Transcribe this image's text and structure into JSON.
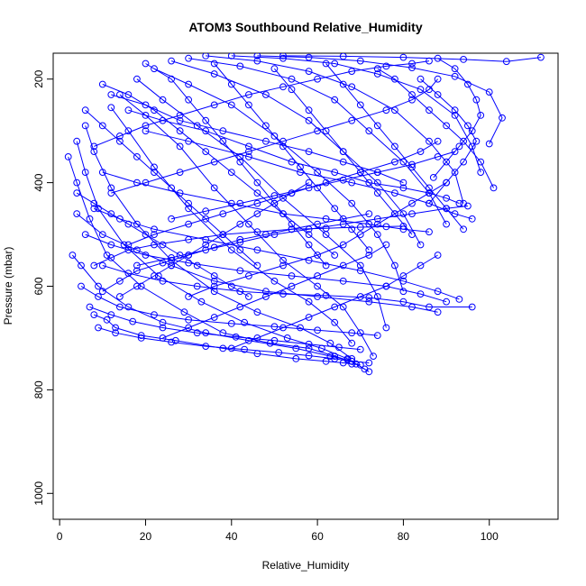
{
  "chart_data": {
    "type": "scatter",
    "title": "ATOM3 Southbound Relative_Humidity",
    "xlabel": "Relative_Humidity",
    "ylabel": "Pressure (mbar)",
    "xlim": [
      -1.5,
      116
    ],
    "ylim": [
      1050,
      150
    ],
    "y_reversed": true,
    "xticks": [
      0,
      20,
      40,
      60,
      80,
      100
    ],
    "yticks": [
      200,
      400,
      600,
      800,
      1000
    ],
    "grid": false,
    "legend": "none",
    "color": "#0000ff",
    "point_marker": "open-circle",
    "connected": true,
    "series": [
      {
        "x": [
          8,
          11,
          13,
          19,
          27,
          38,
          46,
          55,
          62,
          66,
          68,
          70
        ],
        "y": [
          655,
          665,
          680,
          695,
          705,
          720,
          730,
          740,
          745,
          748,
          750,
          752
        ]
      },
      {
        "x": [
          3,
          5,
          9,
          16,
          24,
          34,
          44,
          55,
          63,
          67,
          69
        ],
        "y": [
          540,
          560,
          600,
          640,
          670,
          690,
          705,
          720,
          735,
          742,
          750
        ]
      },
      {
        "x": [
          2,
          4,
          7,
          11,
          19,
          29,
          38,
          49,
          58,
          64,
          68,
          72
        ],
        "y": [
          350,
          400,
          470,
          540,
          600,
          650,
          690,
          710,
          720,
          735,
          745,
          765
        ]
      },
      {
        "x": [
          4,
          6,
          9,
          15,
          23,
          33,
          43,
          53,
          61,
          67,
          71
        ],
        "y": [
          320,
          380,
          450,
          520,
          580,
          630,
          670,
          700,
          720,
          740,
          760
        ]
      },
      {
        "x": [
          6,
          8,
          12,
          18,
          26,
          36,
          46,
          56,
          63,
          68
        ],
        "y": [
          290,
          340,
          410,
          480,
          550,
          610,
          650,
          680,
          710,
          740
        ]
      },
      {
        "x": [
          12,
          16,
          22,
          30,
          40,
          50,
          58,
          64,
          68
        ],
        "y": [
          255,
          300,
          370,
          450,
          530,
          590,
          630,
          670,
          710
        ]
      },
      {
        "x": [
          14,
          20,
          28,
          36,
          44,
          52,
          60,
          66,
          70,
          73
        ],
        "y": [
          230,
          270,
          330,
          410,
          480,
          550,
          600,
          640,
          690,
          735
        ]
      },
      {
        "x": [
          18,
          24,
          32,
          42,
          52,
          62,
          70,
          74,
          76
        ],
        "y": [
          200,
          240,
          290,
          350,
          430,
          500,
          560,
          620,
          680
        ]
      },
      {
        "x": [
          22,
          30,
          40,
          50,
          60,
          68,
          74,
          78,
          80
        ],
        "y": [
          180,
          210,
          250,
          310,
          380,
          440,
          500,
          560,
          610
        ]
      },
      {
        "x": [
          26,
          36,
          48,
          58,
          66,
          74,
          80,
          84
        ],
        "y": [
          165,
          190,
          230,
          280,
          340,
          400,
          460,
          520
        ]
      },
      {
        "x": [
          30,
          42,
          54,
          64,
          72,
          80,
          86,
          90
        ],
        "y": [
          160,
          175,
          200,
          240,
          300,
          360,
          420,
          480
        ]
      },
      {
        "x": [
          34,
          46,
          58,
          68,
          78,
          86,
          92,
          94
        ],
        "y": [
          155,
          165,
          185,
          215,
          260,
          320,
          380,
          440
        ]
      },
      {
        "x": [
          40,
          52,
          64,
          74,
          84,
          92,
          96,
          98
        ],
        "y": [
          155,
          160,
          170,
          190,
          220,
          270,
          330,
          380
        ]
      },
      {
        "x": [
          46,
          58,
          70,
          82,
          92,
          100,
          103,
          100
        ],
        "y": [
          155,
          158,
          165,
          178,
          195,
          225,
          275,
          325
        ]
      },
      {
        "x": [
          52,
          66,
          80,
          94,
          104,
          112
        ],
        "y": [
          155,
          156,
          158,
          162,
          166,
          158
        ]
      },
      {
        "x": [
          20,
          30,
          44,
          56,
          68,
          78,
          86,
          92,
          96
        ],
        "y": [
          300,
          320,
          350,
          380,
          400,
          420,
          440,
          460,
          470
        ]
      },
      {
        "x": [
          10,
          18,
          28,
          40,
          52,
          62,
          72,
          80,
          86
        ],
        "y": [
          380,
          400,
          420,
          440,
          460,
          470,
          480,
          490,
          495
        ]
      },
      {
        "x": [
          8,
          14,
          22,
          34,
          46,
          58,
          70,
          80,
          88,
          93
        ],
        "y": [
          450,
          470,
          490,
          510,
          530,
          550,
          570,
          590,
          610,
          625
        ]
      },
      {
        "x": [
          6,
          12,
          20,
          30,
          42,
          54,
          66,
          76,
          84,
          90
        ],
        "y": [
          500,
          520,
          540,
          555,
          570,
          580,
          590,
          600,
          615,
          630
        ]
      },
      {
        "x": [
          4,
          10,
          18,
          26,
          36,
          48,
          60,
          72,
          82,
          88
        ],
        "y": [
          460,
          500,
          530,
          560,
          590,
          610,
          620,
          630,
          640,
          650
        ]
      },
      {
        "x": [
          10,
          16,
          24,
          32,
          42,
          52,
          62,
          72,
          80,
          86,
          96
        ],
        "y": [
          560,
          575,
          590,
          600,
          610,
          615,
          618,
          622,
          630,
          640,
          640
        ]
      },
      {
        "x": [
          5,
          9,
          14,
          22,
          30,
          40,
          50,
          60,
          68,
          74
        ],
        "y": [
          600,
          620,
          640,
          655,
          665,
          672,
          678,
          685,
          690,
          695
        ]
      },
      {
        "x": [
          7,
          12,
          17,
          24,
          32,
          41,
          50,
          58,
          65,
          70
        ],
        "y": [
          640,
          655,
          668,
          680,
          690,
          698,
          705,
          712,
          718,
          722
        ]
      },
      {
        "x": [
          9,
          13,
          19,
          26,
          34,
          43,
          51,
          58,
          64,
          68,
          72
        ],
        "y": [
          680,
          690,
          700,
          708,
          716,
          722,
          728,
          734,
          740,
          745,
          748
        ]
      },
      {
        "x": [
          30,
          36,
          44,
          52,
          60,
          66,
          70,
          74,
          78,
          82,
          86,
          90
        ],
        "y": [
          620,
          600,
          580,
          560,
          540,
          520,
          500,
          480,
          460,
          440,
          420,
          400
        ]
      },
      {
        "x": [
          16,
          22,
          30,
          38,
          46,
          54,
          62,
          70,
          78,
          84,
          88
        ],
        "y": [
          520,
          500,
          480,
          460,
          440,
          420,
          400,
          380,
          360,
          340,
          320
        ]
      },
      {
        "x": [
          12,
          20,
          28,
          36,
          44,
          52,
          60,
          68,
          76,
          82,
          86,
          88
        ],
        "y": [
          420,
          400,
          380,
          360,
          340,
          320,
          300,
          280,
          260,
          240,
          220,
          200
        ]
      },
      {
        "x": [
          8,
          14,
          20,
          28,
          36,
          44,
          52,
          60,
          68,
          76,
          82,
          86
        ],
        "y": [
          330,
          310,
          290,
          270,
          250,
          230,
          215,
          200,
          185,
          175,
          170,
          165
        ]
      },
      {
        "x": [
          10,
          16,
          22,
          28,
          34,
          40,
          46,
          52,
          58,
          64
        ],
        "y": [
          210,
          230,
          260,
          300,
          340,
          380,
          420,
          460,
          500,
          540
        ]
      },
      {
        "x": [
          20,
          26,
          30,
          34,
          38,
          42,
          46,
          50,
          54,
          58,
          62
        ],
        "y": [
          170,
          200,
          240,
          280,
          320,
          360,
          400,
          440,
          480,
          520,
          560
        ]
      },
      {
        "x": [
          36,
          40,
          44,
          48,
          52,
          56,
          60,
          64,
          68,
          72
        ],
        "y": [
          170,
          210,
          250,
          290,
          330,
          370,
          410,
          450,
          490,
          530
        ]
      },
      {
        "x": [
          50,
          54,
          58,
          62,
          66,
          70,
          74,
          78,
          82
        ],
        "y": [
          180,
          220,
          260,
          300,
          340,
          380,
          420,
          460,
          500
        ]
      },
      {
        "x": [
          62,
          66,
          70,
          74,
          78,
          82,
          86,
          90,
          94
        ],
        "y": [
          170,
          210,
          250,
          290,
          330,
          370,
          410,
          450,
          490
        ]
      },
      {
        "x": [
          74,
          78,
          82,
          86,
          90,
          94,
          98,
          101
        ],
        "y": [
          180,
          200,
          230,
          260,
          290,
          320,
          360,
          410
        ]
      },
      {
        "x": [
          84,
          88,
          92,
          95,
          97,
          94,
          90,
          86
        ],
        "y": [
          200,
          230,
          260,
          290,
          320,
          360,
          400,
          440
        ]
      },
      {
        "x": [
          88,
          92,
          95,
          97,
          98,
          96,
          93,
          90,
          87
        ],
        "y": [
          160,
          180,
          210,
          240,
          270,
          300,
          330,
          360,
          390
        ]
      },
      {
        "x": [
          4,
          8,
          12,
          16,
          20,
          24,
          28,
          32,
          36,
          40,
          44
        ],
        "y": [
          420,
          440,
          460,
          480,
          500,
          520,
          540,
          560,
          580,
          600,
          620
        ]
      },
      {
        "x": [
          6,
          10,
          14,
          18,
          22,
          26,
          30,
          34,
          38,
          42,
          46
        ],
        "y": [
          260,
          290,
          320,
          350,
          380,
          410,
          440,
          470,
          500,
          530,
          560
        ]
      },
      {
        "x": [
          14,
          18,
          22,
          26,
          30,
          34,
          38,
          42,
          46,
          50,
          54,
          58
        ],
        "y": [
          620,
          600,
          580,
          560,
          540,
          520,
          500,
          480,
          460,
          440,
          420,
          400
        ]
      },
      {
        "x": [
          24,
          30,
          36,
          42,
          48,
          54,
          60,
          66,
          72,
          76
        ],
        "y": [
          700,
          680,
          660,
          640,
          620,
          600,
          580,
          560,
          540,
          520
        ]
      },
      {
        "x": [
          40,
          46,
          52,
          58,
          64,
          70,
          76,
          80,
          84,
          88
        ],
        "y": [
          720,
          700,
          680,
          660,
          640,
          620,
          600,
          580,
          560,
          540
        ]
      },
      {
        "x": [
          12,
          20,
          28,
          38,
          48,
          58,
          66,
          74,
          80
        ],
        "y": [
          230,
          250,
          280,
          300,
          320,
          340,
          360,
          380,
          400
        ]
      },
      {
        "x": [
          16,
          24,
          34,
          44,
          54,
          64,
          72,
          80,
          86,
          90,
          93
        ],
        "y": [
          260,
          280,
          300,
          330,
          360,
          380,
          400,
          410,
          420,
          430,
          440
        ]
      },
      {
        "x": [
          18,
          26,
          34,
          42,
          50,
          58,
          66,
          74,
          82,
          90,
          95
        ],
        "y": [
          560,
          545,
          530,
          515,
          500,
          490,
          480,
          470,
          460,
          450,
          445
        ]
      },
      {
        "x": [
          26,
          34,
          42,
          50,
          58,
          66,
          74,
          82,
          88,
          92
        ],
        "y": [
          470,
          455,
          440,
          425,
          410,
          395,
          380,
          365,
          350,
          340
        ]
      },
      {
        "x": [
          10,
          14,
          18,
          24,
          30,
          36,
          42,
          48,
          54,
          60,
          66,
          72
        ],
        "y": [
          610,
          590,
          570,
          555,
          540,
          525,
          510,
          500,
          490,
          480,
          470,
          460
        ]
      },
      {
        "x": [
          8,
          12,
          16,
          22,
          30,
          38,
          46,
          54,
          62,
          70,
          76,
          80
        ],
        "y": [
          560,
          545,
          530,
          520,
          510,
          500,
          495,
          490,
          488,
          486,
          485,
          484
        ]
      }
    ]
  }
}
